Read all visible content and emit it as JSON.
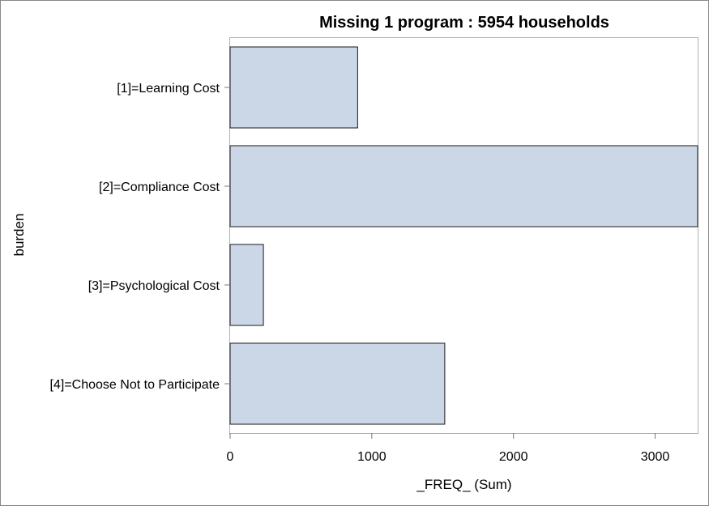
{
  "chart_data": {
    "type": "bar",
    "orientation": "horizontal",
    "title": "Missing 1 program : 5954 households",
    "xlabel": "_FREQ_ (Sum)",
    "ylabel": "burden",
    "categories": [
      "[1]=Learning Cost",
      "[2]=Compliance Cost",
      "[3]=Psychological Cost",
      "[4]=Choose Not to Participate"
    ],
    "values": [
      900,
      3300,
      235,
      1515
    ],
    "xlim": [
      0,
      3300
    ],
    "xticks": [
      "0",
      "1000",
      "2000",
      "3000"
    ],
    "grid": false,
    "legend": "none",
    "colors": {
      "bar_fill": "#cbd6e6",
      "bar_stroke": "#1a1a1a",
      "frame": "#b0b0b0",
      "outer_border": "#888888"
    }
  }
}
